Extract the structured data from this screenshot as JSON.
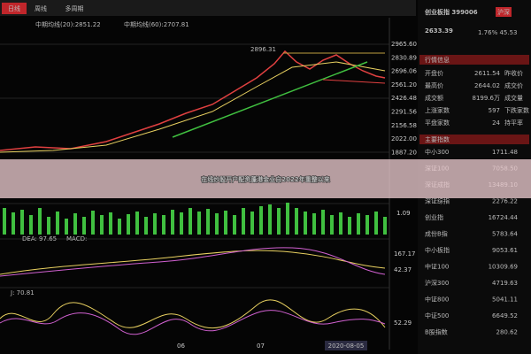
{
  "tabs": [
    "日线",
    "周线",
    "多周期"
  ],
  "indicators": [
    "中期均线(20):2851.22",
    "中期均线(60):2707.81"
  ],
  "peak_label": "2896.31",
  "price_axis": [
    "2965.60",
    "2830.89",
    "2696.06",
    "2561.20",
    "2426.48",
    "2291.56",
    "2156.58",
    "2022.00",
    "1887.20"
  ],
  "volume_axis": "1.09",
  "macd": {
    "labels": [
      "DEA: 97.65",
      "MACD:"
    ],
    "axis": [
      "167.17",
      "42.37"
    ]
  },
  "kdj": {
    "label": "J: 70.81",
    "axis": "52.29"
  },
  "dates": [
    "06",
    "07",
    "2020-08-05"
  ],
  "banner": "在线炒股开户配资蓬港金业自2022年重整以来",
  "quote": {
    "name": "创业板指 399006",
    "badge": "沪深",
    "price": "2633.39",
    "change": "1.76% 45.53",
    "section": "行情信息",
    "rows": [
      [
        "开盘价",
        "2611.54",
        "昨收价"
      ],
      [
        "最高价",
        "2644.02",
        "成交价"
      ],
      [
        "成交额",
        "8199.6万",
        "成交量"
      ],
      [
        "上涨家数",
        "597",
        "下跌家数"
      ],
      [
        "平盘家数",
        "24",
        "持平率"
      ]
    ]
  },
  "indices": {
    "title": "主要指数",
    "rows": [
      [
        "中小300",
        "1711.48"
      ],
      [
        "深证100",
        "7058.50"
      ],
      [
        "深证成指",
        "13489.10"
      ],
      [
        "深证综指",
        "2276.22"
      ],
      [
        "创业指",
        "16724.44"
      ],
      [
        "成份B指",
        "5783.64"
      ],
      [
        "中小板指",
        "9053.61"
      ],
      [
        "中证100",
        "10309.69"
      ],
      [
        "沪深300",
        "4719.63"
      ],
      [
        "中证800",
        "5041.11"
      ],
      [
        "中证500",
        "6649.52"
      ],
      [
        "B股指数",
        "280.62"
      ]
    ]
  }
}
